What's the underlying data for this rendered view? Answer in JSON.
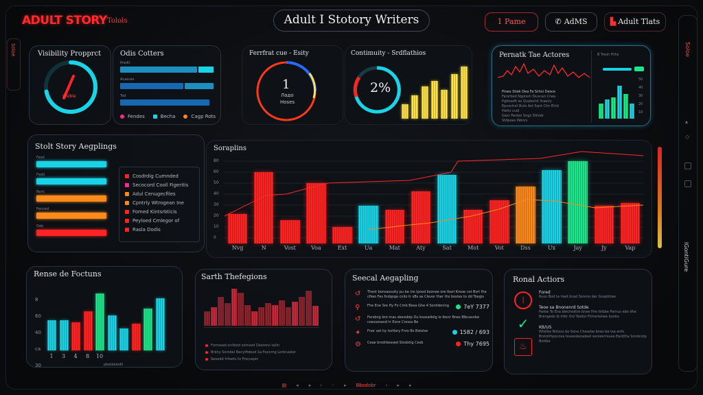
{
  "header": {
    "brand": "ADULT STORY",
    "brand_sub": "Tolols",
    "title": "Adult Ӏ Stotory Writers",
    "btn1": "1 Pame",
    "btn2": "AdMS",
    "btn3": "Adult Tlats"
  },
  "colors": {
    "red": "#ff2424",
    "cyan": "#19d3e6",
    "yellow": "#ffe14a",
    "orange": "#ff8a1c",
    "green": "#1ce68a"
  },
  "panel_visibility": {
    "title": "Visibility Propprct",
    "gauge_label": "Visible",
    "gauge_value": 0.72
  },
  "panel_odis": {
    "title": "Odis Cotters",
    "rows": [
      "Predit",
      "Acaeses",
      "Tad"
    ],
    "legend": [
      "Fendes",
      "Becha",
      "Cagp Rots"
    ]
  },
  "panel_ferred": {
    "title": "Ferrfrat cue - Esity",
    "big": "1",
    "line2": "Ладо",
    "line3": "Hoses"
  },
  "panel_continuity": {
    "title": "Contimuity - Srdflathios",
    "big": "2%",
    "bars": [
      0.28,
      0.45,
      0.62,
      0.72,
      0.55,
      0.85,
      1.0
    ]
  },
  "panel_permath": {
    "title": "Pernatk Tae Actores",
    "side_title": "B Tresh Fiths",
    "lines": [
      "Proes Stiek Dea Fa Schsi Desce",
      "Farsrbed Ngolssh Sluscan Cnea",
      "Pgtleseft as Quaterist Ihaeiry",
      "Epcoctrst Buts Ast Sqnt Chn Ehid",
      "Hetts cudi",
      "Gasr Pestes Sngs Stiheb",
      "Stdpeas Wenrs"
    ],
    "bars": [
      0.4,
      0.5,
      0.55,
      0.85,
      0.65,
      0.4
    ],
    "ylabels": [
      "50",
      "40",
      "30",
      "20",
      "10"
    ]
  },
  "panel_adult_story": {
    "title": "Stolt Story Aegplings",
    "rows": [
      {
        "label": "Fexd",
        "color": "#19d3e6",
        "value": 0.85
      },
      {
        "label": "Fedd",
        "color": "#19d3e6",
        "value": 0.85
      },
      {
        "label": "Rent",
        "color": "#ff8a1c",
        "value": 0.85
      },
      {
        "label": "Penced",
        "color": "#ff8a1c",
        "value": 0.85
      },
      {
        "label": "Oab",
        "color": "#ff2424",
        "value": 0.85
      }
    ],
    "legend": [
      {
        "label": "Cosdrdig Cumnded",
        "color": "#ff2424"
      },
      {
        "label": "Secocord Cooll Figeritis",
        "color": "#ff2a8a"
      },
      {
        "label": "Adul Cenugecfiles",
        "color": "#ff8a1c"
      },
      {
        "label": "Cpntrly Wtrogean Ine",
        "color": "#ff8a1c"
      },
      {
        "label": "Fomed Kintsrbticis",
        "color": "#ff2424"
      },
      {
        "label": "Peyloed Cmlegor of",
        "color": "#ff2424"
      },
      {
        "label": "Rasla Dodis",
        "color": "#ff2424"
      }
    ]
  },
  "chart_data": {
    "type": "bar",
    "title": "Soraplins",
    "categories": [
      "Nvg",
      "N",
      "Vost",
      "Voa",
      "Ext",
      "Ua",
      "Mat",
      "Aty",
      "Sat",
      "Mot",
      "Vot",
      "Dss",
      "Ux",
      "Jay",
      "Jy",
      "Vap"
    ],
    "values": [
      35,
      85,
      28,
      72,
      20,
      45,
      40,
      62,
      82,
      40,
      52,
      68,
      88,
      98,
      45,
      48
    ],
    "colors": [
      "#ff2424",
      "#ff2424",
      "#ff2424",
      "#ff2424",
      "#ff2424",
      "#19d3e6",
      "#ff2424",
      "#ff2424",
      "#19d3e6",
      "#ff2424",
      "#ff2424",
      "#ff8a1c",
      "#19d3e6",
      "#1ce68a",
      "#ff2424",
      "#ff2424"
    ],
    "ylabels": [
      "80",
      "60",
      "50",
      "40",
      "30",
      "20",
      "10",
      "0"
    ],
    "ylim": [
      0,
      100
    ]
  },
  "panel_rense": {
    "title": "Rense de Foctuns",
    "values": [
      0.48,
      0.48,
      0.45,
      0.62,
      0.9,
      0.55,
      0.35,
      0.42,
      0.66,
      0.83
    ],
    "colors": [
      "#19d3e6",
      "#19d3e6",
      "#ff2424",
      "#ff2424",
      "#1ce68a",
      "#19d3e6",
      "#19d3e6",
      "#ff2424",
      "#1ce68a",
      "#19d3e6"
    ],
    "xlabels": [
      "1",
      "3",
      "4",
      "8",
      "10"
    ],
    "ylabels": [
      "8",
      "60",
      "40",
      "ca",
      "30"
    ],
    "footer": "pbetdaledll"
  },
  "panel_sarth": {
    "title": "Sarth Thefegions",
    "values": [
      0.35,
      0.45,
      0.7,
      0.55,
      0.9,
      0.8,
      0.5,
      0.35,
      0.45,
      0.55,
      0.5,
      0.62,
      0.45,
      0.58,
      0.7,
      0.85,
      0.48
    ],
    "lines": [
      "Fornseed scrbted sotnesd Deerens lailin",
      "Brbhy Sombel Benyiftdesd Sa Feonmg Lorbnaster",
      "Seoedd fr4sets to Frocsepin"
    ]
  },
  "panel_seecal": {
    "title": "Seecal Aegapling",
    "items": [
      {
        "text": "Thest bonsassuity pu be tre lpood bsonee ore lbarl Kreoe nst Bsrt fhe cfiwo Fes fndqoge cnilo tr sBs as Clevor ther ths bostes to dd Toegis",
        "stat": ""
      },
      {
        "text": "Fhe Ene Sre Hy Fo Cmb Besa Ghe 4 Sontdening",
        "stat": "7eY 7377"
      },
      {
        "text": "Fersbng bro rnas sbessbtp Du bsosatbiig lo Ibsnr Bnes Blbcasnbe coessosand tr Esne Crosss Be",
        "stat": ""
      },
      {
        "text": "Fnor set hy tortlory Fnro Bs Bstolse",
        "stat": "1582 / 693"
      },
      {
        "text": "Ceae brsdrbessed Stodxtig Cesb",
        "stat": "Thy 7695"
      }
    ]
  },
  "panel_ronal": {
    "title": "Ronal Actiors",
    "items": [
      {
        "head": "Fored",
        "text": "Ruso Bod ta hied Grad Sonmo der Gospbtlee"
      },
      {
        "head": "Teoe sa Bnonenrd Sotde",
        "text": "Parbe To Ena blechedtre bnee Hre ttrbbe Fernus ebe dhe Brengeds ib lrtbr thd Tsedoi Fhtrertehee bonbs"
      },
      {
        "head": "KB/US",
        "text": "Wtetbe Botoss bo Sone Chearbe bnes be tsa enfs Brstolthpocosa tssoesbosabed seroeerrsuee Eardtha Sondcotp Bottbe"
      }
    ]
  },
  "side_left": "Soloe",
  "side_right": "Soloe",
  "right_brand": "IGontiGure",
  "bottom_nav": [
    "▤",
    "◂",
    "◂",
    "‹",
    "◦",
    "▸",
    "Bbsdobr",
    "›",
    "▸",
    "▸"
  ]
}
